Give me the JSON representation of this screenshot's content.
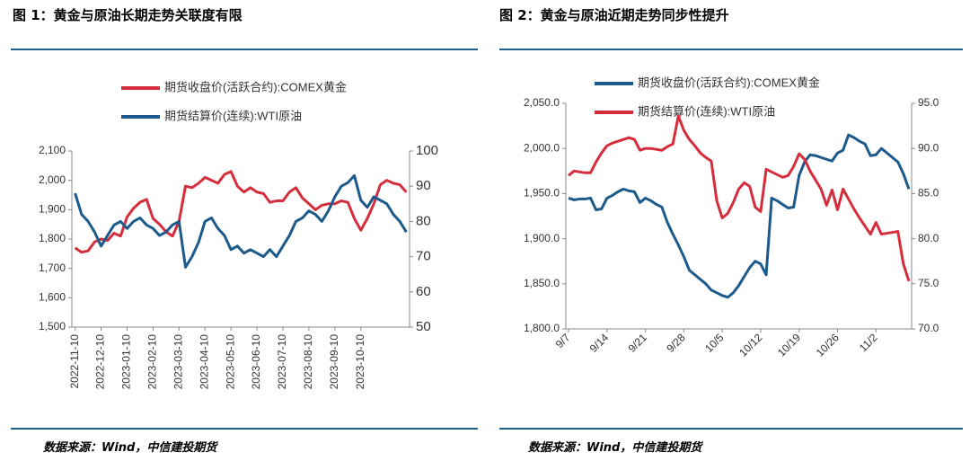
{
  "chart_data": [
    {
      "type": "line",
      "title": "图 1：黄金与原油长期走势关联度有限",
      "source": "数据来源：Wind，中信建投期货",
      "legend": "top",
      "categories": [
        "2022-11-10",
        null,
        null,
        null,
        "2022-12-10",
        null,
        null,
        null,
        "2023-01-10",
        null,
        null,
        null,
        "2023-02-10",
        null,
        null,
        null,
        "2023-03-10",
        null,
        null,
        null,
        "2023-04-10",
        null,
        null,
        null,
        "2023-05-10",
        null,
        null,
        null,
        "2023-06-10",
        null,
        null,
        null,
        "2023-07-10",
        null,
        null,
        null,
        "2023-08-10",
        null,
        null,
        null,
        "2023-09-10",
        null,
        null,
        null,
        "2023-10-10",
        null,
        null,
        null,
        null,
        null,
        null,
        null
      ],
      "series": [
        {
          "name": "期货收盘价(活跃合约):COMEX黄金",
          "color": "#d62d3c",
          "axis": "y",
          "values": [
            1770,
            1755,
            1760,
            1790,
            1800,
            1795,
            1820,
            1810,
            1875,
            1905,
            1925,
            1935,
            1870,
            1850,
            1825,
            1810,
            1860,
            1980,
            1975,
            1990,
            2010,
            2000,
            1990,
            2020,
            2030,
            1980,
            1960,
            1975,
            1960,
            1955,
            1925,
            1930,
            1930,
            1960,
            1975,
            1940,
            1920,
            1900,
            1915,
            1920,
            1920,
            1930,
            1925,
            1870,
            1830,
            1870,
            1920,
            1985,
            2000,
            1990,
            1985,
            1960
          ]
        },
        {
          "name": "期货结算价(连续):WTI原油",
          "color": "#1b5a8a",
          "axis": "y2",
          "values": [
            88,
            82,
            80,
            77,
            73,
            76,
            79,
            80,
            78,
            80,
            81,
            79,
            78,
            76,
            77,
            79,
            80,
            67,
            70,
            74,
            80,
            81,
            78,
            76,
            72,
            73,
            71,
            72,
            71,
            70,
            72,
            70,
            73,
            76,
            80,
            81,
            83,
            82,
            80,
            83,
            87,
            90,
            91,
            93,
            86,
            84,
            87,
            86,
            85,
            82,
            80,
            77
          ]
        }
      ],
      "ylim": [
        1500,
        2100
      ],
      "yticks": [
        {
          "value": 1500,
          "label": "1,500"
        },
        {
          "value": 1600,
          "label": "1,600"
        },
        {
          "value": 1700,
          "label": "1,700"
        },
        {
          "value": 1800,
          "label": "1,800"
        },
        {
          "value": 1900,
          "label": "1,900"
        },
        {
          "value": 2000,
          "label": "2,000"
        },
        {
          "value": 2100,
          "label": "2,100"
        }
      ],
      "y2lim": [
        50,
        100
      ],
      "y2ticks": [
        50,
        60,
        70,
        80,
        90,
        100
      ]
    },
    {
      "type": "line",
      "title": "图 2：黄金与原油近期走势同步性提升",
      "source": "数据来源：Wind，中信建投期货",
      "legend": "upper center",
      "categories": [
        "9/7",
        null,
        null,
        null,
        null,
        null,
        null,
        "9/14",
        null,
        null,
        null,
        null,
        null,
        null,
        "9/21",
        null,
        null,
        null,
        null,
        null,
        null,
        "9/28",
        null,
        null,
        null,
        null,
        null,
        null,
        "10/5",
        null,
        null,
        null,
        null,
        null,
        null,
        "10/12",
        null,
        null,
        null,
        null,
        null,
        null,
        "10/19",
        null,
        null,
        null,
        null,
        null,
        null,
        "10/26",
        null,
        null,
        null,
        null,
        null,
        null,
        "11/2",
        null,
        null,
        null,
        null,
        null,
        null
      ],
      "series": [
        {
          "name": "期货收盘价(活跃合约):COMEX黄金",
          "color": "#1b5a8a",
          "axis": "y",
          "values": [
            1945,
            1943,
            1944,
            1944,
            1945,
            1932,
            1933,
            1945,
            1948,
            1952,
            1955,
            1953,
            1952,
            1940,
            1945,
            1942,
            1938,
            1935,
            1918,
            1905,
            1893,
            1880,
            1865,
            1860,
            1855,
            1850,
            1843,
            1840,
            1837,
            1835,
            1840,
            1848,
            1858,
            1868,
            1875,
            1872,
            1860,
            1945,
            1942,
            1938,
            1934,
            1935,
            1970,
            1985,
            1993,
            1992,
            1990,
            1988,
            1986,
            1995,
            1998,
            2015,
            2012,
            2008,
            2005,
            1992,
            1993,
            2000,
            1995,
            1990,
            1985,
            1972,
            1955
          ]
        },
        {
          "name": "期货结算价(连续):WTI原油",
          "color": "#d62d3c",
          "axis": "y2",
          "values": [
            87,
            87.5,
            87.4,
            87.3,
            87.3,
            88.5,
            89.5,
            90.3,
            90.6,
            90.8,
            91,
            91.2,
            91,
            89.8,
            90,
            90,
            89.9,
            89.8,
            90.2,
            90.5,
            93.6,
            92,
            91,
            90.3,
            89.5,
            89,
            88.6,
            84.2,
            82.3,
            82.8,
            84,
            85.5,
            86.2,
            85.8,
            83.5,
            83,
            87.7,
            87.4,
            87.1,
            86.8,
            87,
            88,
            89.4,
            88.8,
            87.5,
            86.5,
            85.5,
            83.7,
            85.4,
            83.2,
            85.5,
            84.4,
            83.3,
            82.3,
            81.4,
            80.5,
            81.8,
            80.5,
            80.6,
            80.7,
            80.8,
            77.2,
            75.3
          ]
        }
      ],
      "ylim": [
        1800,
        2050
      ],
      "yticks": [
        {
          "value": 1800,
          "label": "1,800.0"
        },
        {
          "value": 1850,
          "label": "1,850.0"
        },
        {
          "value": 1900,
          "label": "1,900.0"
        },
        {
          "value": 1950,
          "label": "1,950.0"
        },
        {
          "value": 2000,
          "label": "2,000.0"
        },
        {
          "value": 2050,
          "label": "2,050.0"
        }
      ],
      "y2lim": [
        70,
        95
      ],
      "y2ticks": [
        {
          "value": 70,
          "label": "70.0"
        },
        {
          "value": 75,
          "label": "75.0"
        },
        {
          "value": 80,
          "label": "80.0"
        },
        {
          "value": 85,
          "label": "85.0"
        },
        {
          "value": 90,
          "label": "90.0"
        },
        {
          "value": 95,
          "label": "95.0"
        }
      ]
    }
  ]
}
